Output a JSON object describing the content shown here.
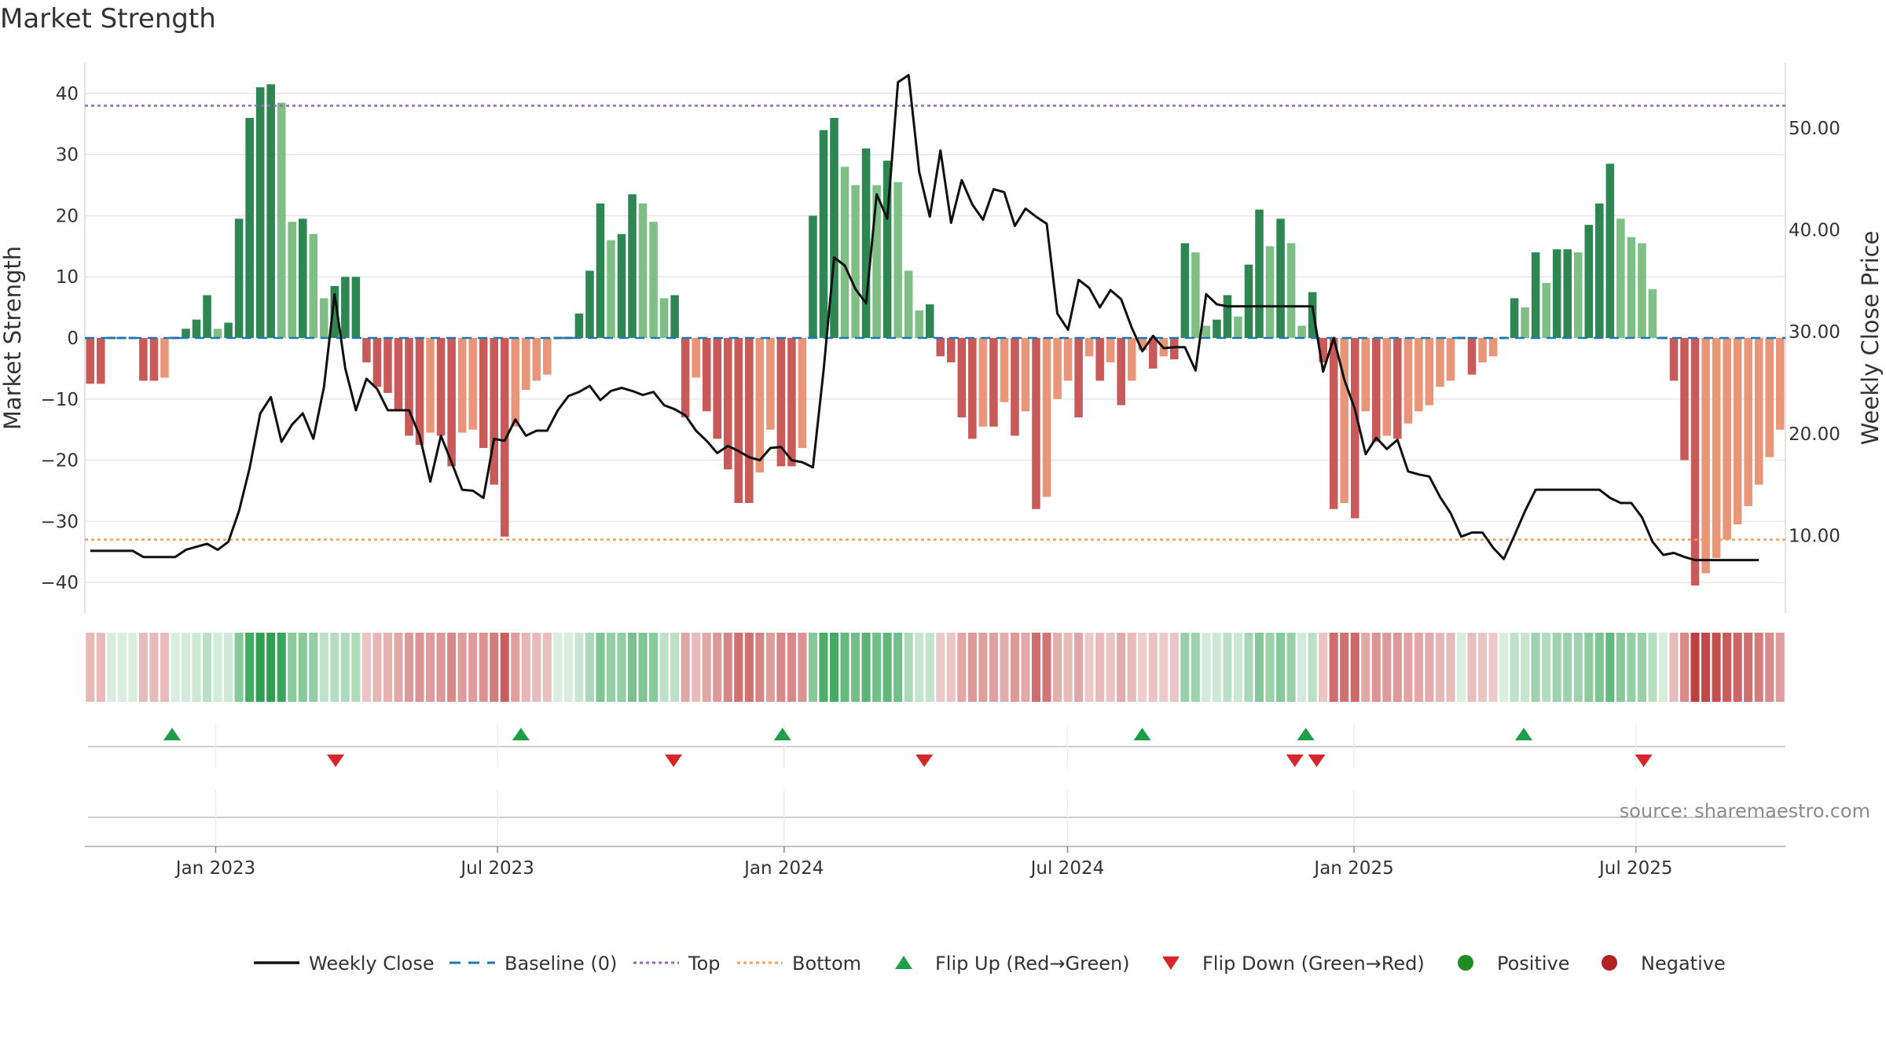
{
  "chart_data": {
    "type": "bar",
    "title": "Market Strength",
    "ylabel": "Market Strength",
    "y2label": "Weekly Close Price",
    "ylim": [
      -45,
      45
    ],
    "y2lim": [
      2.4,
      56.4
    ],
    "yticks": [
      40,
      30,
      20,
      10,
      0,
      -10,
      -20,
      -30,
      -40
    ],
    "ytick_labels": [
      "40",
      "30",
      "20",
      "10",
      "0",
      "−10",
      "−20",
      "−30",
      "−40"
    ],
    "y2ticks": [
      50,
      40,
      30,
      20,
      10
    ],
    "y2tick_labels": [
      "50.00",
      "40.00",
      "30.00",
      "20.00",
      "10.00"
    ],
    "start_date": "2022-10-09",
    "end_date": "2025-10-05",
    "date_ticks": [
      {
        "label": "Jan 2023",
        "date": "2023-01-01"
      },
      {
        "label": "Jul 2023",
        "date": "2023-07-01"
      },
      {
        "label": "Jan 2024",
        "date": "2024-01-01"
      },
      {
        "label": "Jul 2024",
        "date": "2024-07-01"
      },
      {
        "label": "Jan 2025",
        "date": "2025-01-01"
      },
      {
        "label": "Jul 2025",
        "date": "2025-07-01"
      }
    ],
    "top_threshold": 38,
    "bottom_threshold": -33,
    "baseline": 0,
    "strength": [
      -7.5,
      -7.5,
      0,
      0,
      0,
      -7,
      -7,
      -6.5,
      0,
      1.5,
      3,
      7,
      1.5,
      2.5,
      19.5,
      36,
      41,
      41.5,
      38.5,
      19,
      19.5,
      17,
      6.5,
      8.5,
      10,
      10,
      -4,
      -8,
      -9,
      -12,
      -16,
      -17.5,
      -15.5,
      -16,
      -21,
      -15.5,
      -15,
      -18,
      -24,
      -32.5,
      -14.5,
      -8.5,
      -7,
      -6,
      0,
      0,
      4,
      11,
      22,
      16,
      17,
      23.5,
      22,
      19,
      6.5,
      7,
      -13,
      -6.5,
      -12,
      -16.5,
      -21.5,
      -27,
      -27,
      -22,
      -15,
      -21,
      -21,
      -18,
      20,
      34,
      36,
      28,
      25,
      31,
      25,
      29,
      25.5,
      11,
      4.5,
      5.5,
      -3,
      -4,
      -13,
      -16.5,
      -14.5,
      -14.5,
      -10.5,
      -16,
      -12,
      -28,
      -26,
      -10,
      -7,
      -13,
      -3,
      -7,
      -4,
      -11,
      -7,
      -2,
      -5,
      -3,
      -3.5,
      15.5,
      14,
      2,
      3,
      7,
      3.5,
      12,
      21,
      15,
      19.5,
      15.5,
      2,
      7.5,
      -4,
      -28,
      -27,
      -29.5,
      -12,
      -17,
      -16,
      -16.5,
      -14,
      -12,
      -11,
      -8,
      -7,
      0,
      -6,
      -4,
      -3,
      0,
      6.5,
      5,
      14,
      9,
      14.5,
      14.5,
      14,
      18.5,
      22,
      28.5,
      19.5,
      16.5,
      15.5,
      8,
      0,
      -7,
      -20,
      -40.5,
      -38.5,
      -36,
      -33,
      -30.5,
      -27.5,
      -24,
      -19.5,
      -15
    ],
    "close": [
      8.5,
      8.5,
      8.5,
      8.5,
      8.5,
      7.9,
      7.9,
      7.9,
      7.9,
      8.6,
      8.9,
      9.2,
      8.6,
      9.4,
      12.4,
      16.6,
      22,
      23.6,
      19.2,
      20.9,
      22,
      19.5,
      24.6,
      33.7,
      26.4,
      22.3,
      25.4,
      24.4,
      22.3,
      22.3,
      22.3,
      19.8,
      15.3,
      19.8,
      17.2,
      14.5,
      14.4,
      13.7,
      19.5,
      19.3,
      21.4,
      19.8,
      20.3,
      20.3,
      22.3,
      23.7,
      24.1,
      24.7,
      23.3,
      24.2,
      24.5,
      24.2,
      23.8,
      24.1,
      22.8,
      22.4,
      21.8,
      20.3,
      19.3,
      18.1,
      18.8,
      18.3,
      17.7,
      17.4,
      18.6,
      18.7,
      17.4,
      17.2,
      16.7,
      26.2,
      37.3,
      36.5,
      34.2,
      32.8,
      43.5,
      41.1,
      54.5,
      55.2,
      45.7,
      41.3,
      47.8,
      40.7,
      44.9,
      42.5,
      41,
      44,
      43.7,
      40.4,
      42.1,
      41.3,
      40.6,
      31.8,
      30.2,
      35.1,
      34.3,
      32.4,
      34.1,
      33.2,
      30.4,
      28.1,
      29.6,
      28.4,
      28.5,
      28.5,
      26.2,
      33.7,
      32.7,
      32.5,
      32.5,
      32.5,
      32.5,
      32.5,
      32.5,
      32.5,
      32.5,
      32.5,
      26.1,
      29.4,
      25.3,
      22.4,
      18,
      19.6,
      18.5,
      19.4,
      16.3,
      16,
      15.8,
      13.8,
      12.2,
      9.9,
      10.3,
      10.3,
      8.8,
      7.7,
      10,
      12.4,
      14.5,
      14.5,
      14.5,
      14.5,
      14.5,
      14.5,
      14.5,
      13.7,
      13.2,
      13.2,
      11.8,
      9.4,
      8.1,
      8.3,
      7.9,
      7.6,
      7.6,
      7.6,
      7.6,
      7.6,
      7.6,
      7.6
    ],
    "flip_up_dates": [
      "2022-12-04",
      "2023-07-16",
      "2023-12-31",
      "2024-08-18",
      "2024-12-01",
      "2025-04-20"
    ],
    "flip_down_dates": [
      "2023-03-19",
      "2023-10-22",
      "2024-03-31",
      "2024-11-24",
      "2024-12-08",
      "2025-07-06"
    ],
    "series": [
      {
        "name": "Weekly Close",
        "color": "#111111"
      },
      {
        "name": "Baseline (0)",
        "color": "#1f77b4"
      },
      {
        "name": "Top",
        "color": "#9467bd"
      },
      {
        "name": "Bottom",
        "color": "#f39c57"
      },
      {
        "name": "Flip Up (Red→Green)",
        "color": "#1e9e48"
      },
      {
        "name": "Flip Down (Green→Red)",
        "color": "#d62728"
      },
      {
        "name": "Positive",
        "color": "#228b22"
      },
      {
        "name": "Negative",
        "color": "#b22222"
      }
    ],
    "source": "source: sharemaestro.com"
  }
}
